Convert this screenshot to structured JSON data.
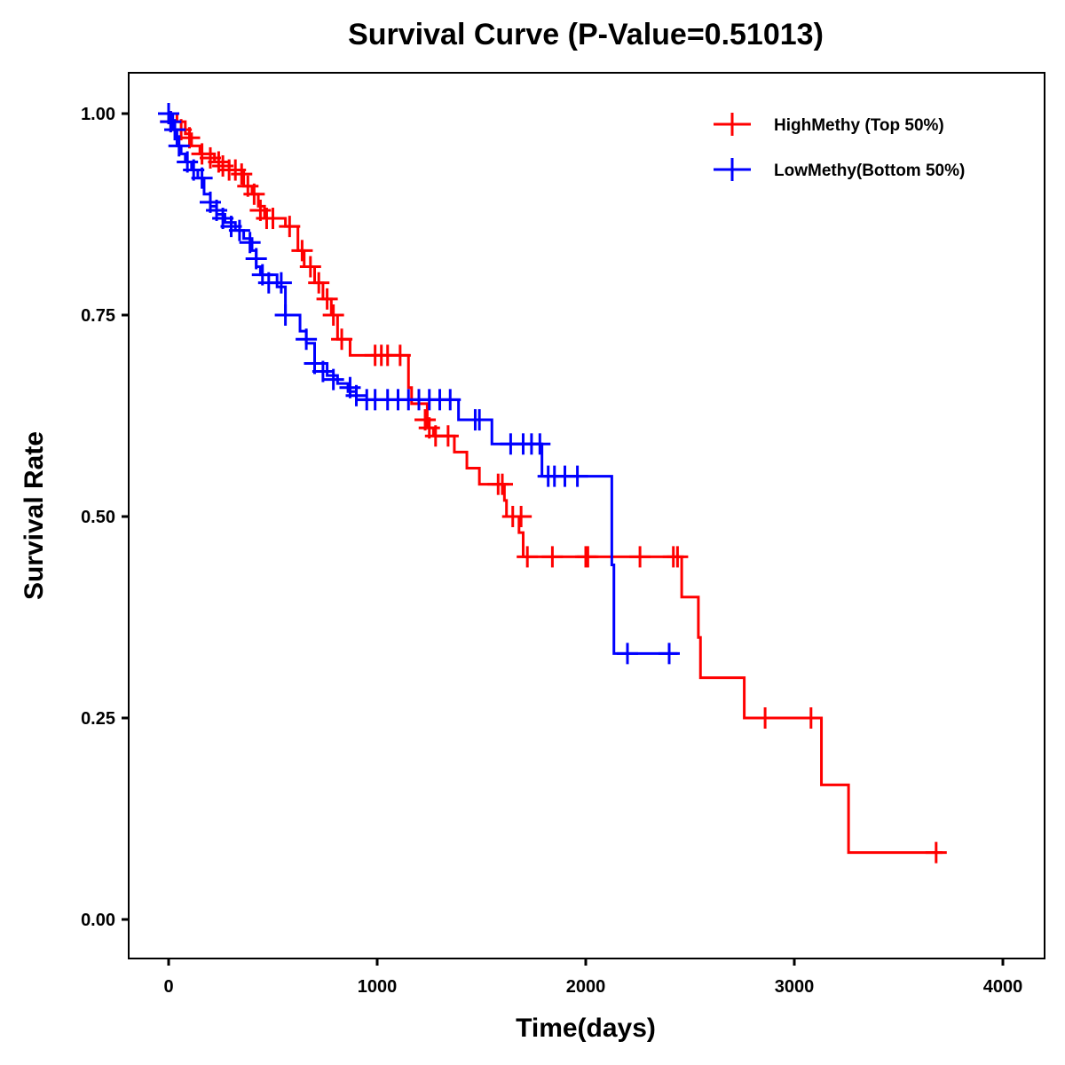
{
  "chart_data": {
    "type": "line",
    "subtype": "kaplan-meier step",
    "title": "Survival Curve (P-Value=0.51013)",
    "xlabel": "Time(days)",
    "ylabel": "Survival Rate",
    "xlim": [
      -200,
      4200
    ],
    "ylim": [
      -0.05,
      1.05
    ],
    "xticks": [
      0,
      1000,
      2000,
      3000,
      4000
    ],
    "xtick_labels": [
      "0",
      "1000",
      "2000",
      "3000",
      "4000"
    ],
    "yticks": [
      0,
      0.25,
      0.5,
      0.75,
      1.0
    ],
    "ytick_labels": [
      "0.00",
      "0.25",
      "0.50",
      "0.75",
      "1.00"
    ],
    "grid": false,
    "legend_position": "top-right",
    "series": [
      {
        "name": "HighMethy (Top 50%)",
        "color": "#ff0000",
        "steps": [
          [
            0,
            1.0
          ],
          [
            40,
            0.99
          ],
          [
            80,
            0.975
          ],
          [
            110,
            0.96
          ],
          [
            150,
            0.95
          ],
          [
            220,
            0.94
          ],
          [
            290,
            0.93
          ],
          [
            360,
            0.91
          ],
          [
            400,
            0.9
          ],
          [
            430,
            0.885
          ],
          [
            460,
            0.87
          ],
          [
            560,
            0.86
          ],
          [
            620,
            0.83
          ],
          [
            650,
            0.81
          ],
          [
            700,
            0.79
          ],
          [
            740,
            0.77
          ],
          [
            780,
            0.75
          ],
          [
            810,
            0.72
          ],
          [
            870,
            0.7
          ],
          [
            1150,
            0.66
          ],
          [
            1165,
            0.64
          ],
          [
            1240,
            0.61
          ],
          [
            1270,
            0.6
          ],
          [
            1370,
            0.58
          ],
          [
            1430,
            0.56
          ],
          [
            1490,
            0.54
          ],
          [
            1610,
            0.52
          ],
          [
            1620,
            0.5
          ],
          [
            1680,
            0.48
          ],
          [
            1700,
            0.45
          ],
          [
            2460,
            0.4
          ],
          [
            2540,
            0.35
          ],
          [
            2550,
            0.3
          ],
          [
            2760,
            0.25
          ],
          [
            3130,
            0.167
          ],
          [
            3260,
            0.083
          ],
          [
            3710,
            0.083
          ]
        ],
        "censored": [
          [
            10,
            0.99
          ],
          [
            60,
            0.98
          ],
          [
            100,
            0.97
          ],
          [
            160,
            0.95
          ],
          [
            200,
            0.945
          ],
          [
            240,
            0.94
          ],
          [
            260,
            0.935
          ],
          [
            290,
            0.93
          ],
          [
            320,
            0.93
          ],
          [
            350,
            0.925
          ],
          [
            380,
            0.91
          ],
          [
            410,
            0.9
          ],
          [
            440,
            0.88
          ],
          [
            470,
            0.87
          ],
          [
            500,
            0.87
          ],
          [
            580,
            0.86
          ],
          [
            640,
            0.83
          ],
          [
            680,
            0.81
          ],
          [
            720,
            0.79
          ],
          [
            760,
            0.77
          ],
          [
            790,
            0.75
          ],
          [
            830,
            0.72
          ],
          [
            990,
            0.7
          ],
          [
            1020,
            0.7
          ],
          [
            1050,
            0.7
          ],
          [
            1110,
            0.7
          ],
          [
            1230,
            0.62
          ],
          [
            1250,
            0.61
          ],
          [
            1280,
            0.6
          ],
          [
            1340,
            0.6
          ],
          [
            1580,
            0.54
          ],
          [
            1600,
            0.54
          ],
          [
            1650,
            0.5
          ],
          [
            1690,
            0.5
          ],
          [
            1720,
            0.45
          ],
          [
            1840,
            0.45
          ],
          [
            2000,
            0.45
          ],
          [
            2010,
            0.45
          ],
          [
            2260,
            0.45
          ],
          [
            2420,
            0.45
          ],
          [
            2440,
            0.45
          ],
          [
            2860,
            0.25
          ],
          [
            3080,
            0.25
          ],
          [
            3680,
            0.083
          ]
        ]
      },
      {
        "name": "LowMethy(Bottom 50%)",
        "color": "#0000ff",
        "steps": [
          [
            0,
            1.0
          ],
          [
            20,
            0.98
          ],
          [
            40,
            0.96
          ],
          [
            60,
            0.95
          ],
          [
            80,
            0.94
          ],
          [
            110,
            0.93
          ],
          [
            140,
            0.92
          ],
          [
            170,
            0.9
          ],
          [
            200,
            0.885
          ],
          [
            230,
            0.875
          ],
          [
            270,
            0.865
          ],
          [
            320,
            0.855
          ],
          [
            360,
            0.845
          ],
          [
            400,
            0.83
          ],
          [
            420,
            0.81
          ],
          [
            440,
            0.8
          ],
          [
            520,
            0.785
          ],
          [
            560,
            0.75
          ],
          [
            630,
            0.73
          ],
          [
            660,
            0.715
          ],
          [
            700,
            0.69
          ],
          [
            760,
            0.675
          ],
          [
            810,
            0.665
          ],
          [
            860,
            0.655
          ],
          [
            900,
            0.645
          ],
          [
            1390,
            0.62
          ],
          [
            1550,
            0.59
          ],
          [
            1790,
            0.55
          ],
          [
            2125,
            0.44
          ],
          [
            2135,
            0.33
          ],
          [
            2440,
            0.33
          ]
        ],
        "censored": [
          [
            0,
            1.0
          ],
          [
            10,
            0.99
          ],
          [
            30,
            0.98
          ],
          [
            50,
            0.96
          ],
          [
            90,
            0.94
          ],
          [
            120,
            0.93
          ],
          [
            160,
            0.92
          ],
          [
            200,
            0.89
          ],
          [
            230,
            0.88
          ],
          [
            260,
            0.87
          ],
          [
            300,
            0.86
          ],
          [
            340,
            0.855
          ],
          [
            390,
            0.84
          ],
          [
            420,
            0.82
          ],
          [
            450,
            0.8
          ],
          [
            480,
            0.79
          ],
          [
            540,
            0.79
          ],
          [
            560,
            0.75
          ],
          [
            660,
            0.72
          ],
          [
            700,
            0.69
          ],
          [
            740,
            0.68
          ],
          [
            790,
            0.67
          ],
          [
            870,
            0.66
          ],
          [
            900,
            0.65
          ],
          [
            950,
            0.645
          ],
          [
            990,
            0.645
          ],
          [
            1050,
            0.645
          ],
          [
            1100,
            0.645
          ],
          [
            1150,
            0.645
          ],
          [
            1200,
            0.645
          ],
          [
            1250,
            0.645
          ],
          [
            1300,
            0.645
          ],
          [
            1350,
            0.645
          ],
          [
            1470,
            0.62
          ],
          [
            1490,
            0.62
          ],
          [
            1640,
            0.59
          ],
          [
            1700,
            0.59
          ],
          [
            1740,
            0.59
          ],
          [
            1780,
            0.59
          ],
          [
            1820,
            0.55
          ],
          [
            1850,
            0.55
          ],
          [
            1900,
            0.55
          ],
          [
            1960,
            0.55
          ],
          [
            2200,
            0.33
          ],
          [
            2400,
            0.33
          ]
        ]
      }
    ]
  }
}
